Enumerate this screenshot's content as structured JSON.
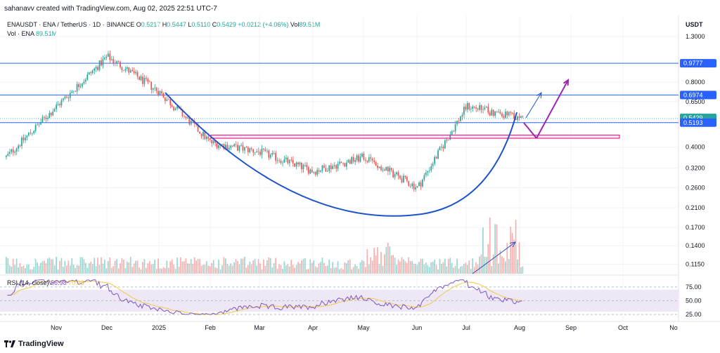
{
  "header": {
    "text": "sahanavv created with TradingView.com, Aug 02, 2025 22:51 UTC-7"
  },
  "symbol": {
    "name": "ENAUSDT · ENA / TetherUS · 1D · BINANCE",
    "open_label": "O",
    "open": "0.5217",
    "high_label": "H",
    "high": "0.5447",
    "low_label": "L",
    "low": "0.5110",
    "close_label": "C",
    "close": "0.5429",
    "change": "+0.0212 (+4.06%)",
    "vol_label": "Vol",
    "vol": "89.51M"
  },
  "volume_legend": {
    "label": "Vol · ENA",
    "value": "89.51M"
  },
  "rsi_legend": {
    "label": "RSI (14, close)",
    "rsi": "56.98",
    "ma": "70.33"
  },
  "currency": "USDT",
  "footer": {
    "brand": "TradingView",
    "logo_icon": "tradingview-logo-icon"
  },
  "colors": {
    "up": "#26a69a",
    "down": "#ef5350",
    "level_line": "#2962ff",
    "zone": "#e91e8c",
    "curve": "#1e53c8",
    "arrow_purple": "#9c27b0",
    "arrow_blue": "#1e53c8",
    "rsi": "#7e57c2",
    "rsi_ma": "#f2c94c",
    "rsi_band": "#ede7f6"
  },
  "chart_data": {
    "type": "candlestick",
    "interval": "1D",
    "y_scale": "log",
    "price_axis_ticks": [
      "1.3000",
      "0.8000",
      "0.6500",
      "0.4000",
      "0.3200",
      "0.2600",
      "0.2100",
      "0.1700",
      "0.1400",
      "0.1150"
    ],
    "x_axis_ticks": [
      "Nov",
      "Dec",
      "2025",
      "Feb",
      "Mar",
      "Apr",
      "May",
      "Jun",
      "Jul",
      "Aug",
      "Sep",
      "Oct",
      "No"
    ],
    "price_labels": [
      {
        "value": "0.9777",
        "role": "horizontal-level"
      },
      {
        "value": "0.6974",
        "role": "horizontal-level"
      },
      {
        "value": "0.5429",
        "role": "last-price"
      },
      {
        "value": "0.5193",
        "role": "horizontal-level"
      }
    ],
    "support_zone": [
      0.44,
      0.455
    ],
    "rsi_axis_ticks": [
      "75.00",
      "50.00",
      "25.00"
    ],
    "rsi_band": [
      30,
      70
    ],
    "monthly_close_approx": [
      {
        "month": "Oct",
        "close": 0.36
      },
      {
        "month": "Nov",
        "close": 0.62
      },
      {
        "month": "Dec",
        "close": 1.05
      },
      {
        "month": "Jan",
        "close": 0.72
      },
      {
        "month": "Feb",
        "close": 0.42
      },
      {
        "month": "Mar",
        "close": 0.38
      },
      {
        "month": "Apr",
        "close": 0.31
      },
      {
        "month": "May",
        "close": 0.36
      },
      {
        "month": "Jun",
        "close": 0.26
      },
      {
        "month": "Jul",
        "close": 0.62
      },
      {
        "month": "Aug",
        "close": 0.5429
      }
    ],
    "annotations": [
      "rounded-bottom curve",
      "projection arrows"
    ]
  }
}
